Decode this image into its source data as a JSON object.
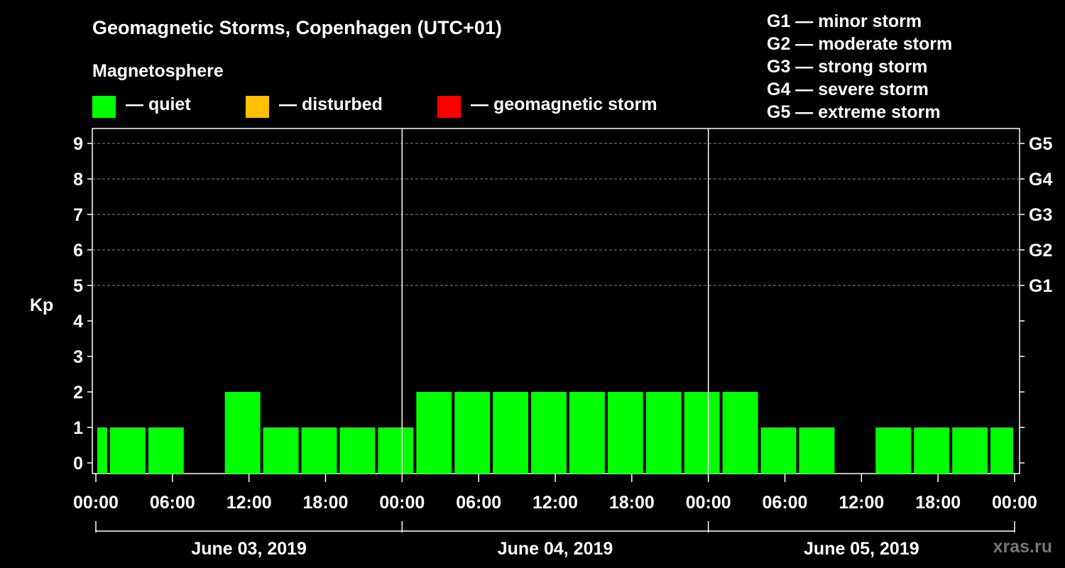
{
  "title": "Geomagnetic Storms, Copenhagen (UTC+01)",
  "magnetosphere": {
    "title": "Magnetosphere",
    "items": [
      {
        "label": "— quiet",
        "color": "#00ff00"
      },
      {
        "label": "— disturbed",
        "color": "#ffbf00"
      },
      {
        "label": "— geomagnetic storm",
        "color": "#ff0000"
      }
    ]
  },
  "storm_levels": [
    "G1 — minor storm",
    "G2 — moderate storm",
    "G3 — strong storm",
    "G4 — severe storm",
    "G5 — extreme storm"
  ],
  "watermark": "xras.ru",
  "chart_data": {
    "type": "bar",
    "ylabel": "Kp",
    "ylim": [
      0,
      9
    ],
    "yticks": [
      "0",
      "1",
      "2",
      "3",
      "4",
      "5",
      "6",
      "7",
      "8",
      "9"
    ],
    "right_ticks": [
      {
        "kp": 5,
        "label": "G1"
      },
      {
        "kp": 6,
        "label": "G2"
      },
      {
        "kp": 7,
        "label": "G3"
      },
      {
        "kp": 8,
        "label": "G4"
      },
      {
        "kp": 9,
        "label": "G5"
      }
    ],
    "grid_levels": [
      5,
      6,
      7,
      8,
      9
    ],
    "x_range_hours": [
      0,
      72
    ],
    "xticks": [
      {
        "hour": 0,
        "label": "00:00"
      },
      {
        "hour": 6,
        "label": "06:00"
      },
      {
        "hour": 12,
        "label": "12:00"
      },
      {
        "hour": 18,
        "label": "18:00"
      },
      {
        "hour": 24,
        "label": "00:00"
      },
      {
        "hour": 30,
        "label": "06:00"
      },
      {
        "hour": 36,
        "label": "12:00"
      },
      {
        "hour": 42,
        "label": "18:00"
      },
      {
        "hour": 48,
        "label": "00:00"
      },
      {
        "hour": 54,
        "label": "06:00"
      },
      {
        "hour": 60,
        "label": "12:00"
      },
      {
        "hour": 66,
        "label": "18:00"
      },
      {
        "hour": 72,
        "label": "00:00"
      }
    ],
    "day_separators": [
      24,
      48
    ],
    "days": [
      {
        "label": "June 03, 2019",
        "start": 0,
        "end": 24
      },
      {
        "label": "June 04, 2019",
        "start": 24,
        "end": 48
      },
      {
        "label": "June 05, 2019",
        "start": 48,
        "end": 72
      }
    ],
    "bar_color": "#00ff00",
    "bars": [
      {
        "start": 0,
        "end": 1,
        "kp": 1
      },
      {
        "start": 1,
        "end": 4,
        "kp": 1
      },
      {
        "start": 4,
        "end": 7,
        "kp": 1
      },
      {
        "start": 7,
        "end": 10,
        "kp": 0
      },
      {
        "start": 10,
        "end": 13,
        "kp": 2
      },
      {
        "start": 13,
        "end": 16,
        "kp": 1
      },
      {
        "start": 16,
        "end": 19,
        "kp": 1
      },
      {
        "start": 19,
        "end": 22,
        "kp": 1
      },
      {
        "start": 22,
        "end": 25,
        "kp": 1
      },
      {
        "start": 25,
        "end": 28,
        "kp": 2
      },
      {
        "start": 28,
        "end": 31,
        "kp": 2
      },
      {
        "start": 31,
        "end": 34,
        "kp": 2
      },
      {
        "start": 34,
        "end": 37,
        "kp": 2
      },
      {
        "start": 37,
        "end": 40,
        "kp": 2
      },
      {
        "start": 40,
        "end": 43,
        "kp": 2
      },
      {
        "start": 43,
        "end": 46,
        "kp": 2
      },
      {
        "start": 46,
        "end": 49,
        "kp": 2
      },
      {
        "start": 49,
        "end": 52,
        "kp": 2
      },
      {
        "start": 52,
        "end": 55,
        "kp": 1
      },
      {
        "start": 55,
        "end": 58,
        "kp": 1
      },
      {
        "start": 58,
        "end": 61,
        "kp": 0
      },
      {
        "start": 61,
        "end": 64,
        "kp": 1
      },
      {
        "start": 64,
        "end": 67,
        "kp": 1
      },
      {
        "start": 67,
        "end": 70,
        "kp": 1
      },
      {
        "start": 70,
        "end": 72,
        "kp": 1
      }
    ]
  }
}
